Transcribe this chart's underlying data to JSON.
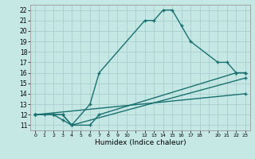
{
  "xlabel": "Humidex (Indice chaleur)",
  "ylabel": "",
  "background_color": "#c5e8e5",
  "grid_color": "#a8cece",
  "line_color": "#1a7070",
  "xlim": [
    -0.5,
    23.5
  ],
  "ylim": [
    10.5,
    22.5
  ],
  "xtick_positions": [
    0,
    1,
    2,
    3,
    4,
    5,
    6,
    7,
    8,
    9,
    10,
    11,
    12,
    13,
    14,
    15,
    16,
    17,
    18,
    19,
    20,
    21,
    22,
    23
  ],
  "xtick_labels": [
    "0",
    "1",
    "2",
    "3",
    "4",
    "5",
    "6",
    "7",
    "8",
    "9",
    "10",
    "",
    "12",
    "13",
    "14",
    "15",
    "16",
    "17",
    "18",
    "",
    "20",
    "21",
    "22",
    "23"
  ],
  "ytick_positions": [
    11,
    12,
    13,
    14,
    15,
    16,
    17,
    18,
    19,
    20,
    21,
    22
  ],
  "ytick_labels": [
    "11",
    "12",
    "13",
    "14",
    "15",
    "16",
    "17",
    "18",
    "19",
    "20",
    "21",
    "22"
  ],
  "lines": [
    {
      "x": [
        0,
        1,
        2,
        3,
        4,
        6,
        7,
        12,
        13,
        14,
        15,
        16,
        17,
        20,
        21,
        22,
        23
      ],
      "y": [
        12,
        12,
        12,
        12,
        11,
        13,
        16,
        21,
        21,
        22,
        22,
        20.5,
        19,
        17,
        17,
        16,
        16
      ]
    },
    {
      "x": [
        0,
        2,
        3,
        4,
        6,
        7,
        22,
        23
      ],
      "y": [
        12,
        12,
        11.5,
        11,
        11,
        12,
        16,
        16
      ]
    },
    {
      "x": [
        0,
        2,
        3,
        4,
        23
      ],
      "y": [
        12,
        12,
        12,
        11,
        15.5
      ]
    },
    {
      "x": [
        0,
        23
      ],
      "y": [
        12,
        14
      ]
    }
  ]
}
